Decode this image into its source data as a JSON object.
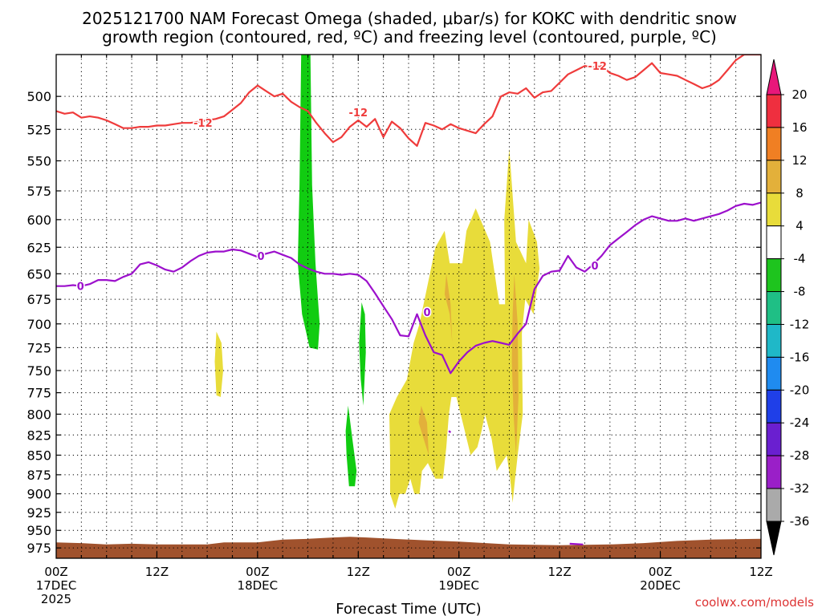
{
  "chart_data": {
    "type": "heatmap",
    "title_line1": "2025121700 NAM Forecast Omega (shaded, μbar/s) for KOKC with dendritic snow",
    "title_line2": "growth region (contoured, red, ºC) and freezing level (contoured, purple, ºC)",
    "xlabel": "Forecast Time (UTC)",
    "ylabel": "",
    "credit": "coolwx.com/models",
    "x_hours_range": [
      0,
      84
    ],
    "ylim_hpa": [
      990,
      470
    ],
    "grid": true,
    "y_ticks": [
      "500",
      "525",
      "550",
      "575",
      "600",
      "625",
      "650",
      "675",
      "700",
      "725",
      "750",
      "775",
      "800",
      "825",
      "850",
      "875",
      "900",
      "925",
      "950",
      "975"
    ],
    "y_tick_values": [
      500,
      525,
      550,
      575,
      600,
      625,
      650,
      675,
      700,
      725,
      750,
      775,
      800,
      825,
      850,
      875,
      900,
      925,
      950,
      975
    ],
    "x_ticks": [
      {
        "hour": 0,
        "l1": "00Z",
        "l2": "17DEC",
        "l3": "2025"
      },
      {
        "hour": 12,
        "l1": "12Z",
        "l2": "",
        "l3": ""
      },
      {
        "hour": 24,
        "l1": "00Z",
        "l2": "18DEC",
        "l3": ""
      },
      {
        "hour": 36,
        "l1": "12Z",
        "l2": "",
        "l3": ""
      },
      {
        "hour": 48,
        "l1": "00Z",
        "l2": "19DEC",
        "l3": ""
      },
      {
        "hour": 60,
        "l1": "12Z",
        "l2": "",
        "l3": ""
      },
      {
        "hour": 72,
        "l1": "00Z",
        "l2": "20DEC",
        "l3": ""
      },
      {
        "hour": 84,
        "l1": "12Z",
        "l2": "",
        "l3": ""
      }
    ],
    "colorbar": {
      "labels": [
        "20",
        "16",
        "12",
        "8",
        "4",
        "-4",
        "-8",
        "-12",
        "-16",
        "-20",
        "-24",
        "-28",
        "-32",
        "-36"
      ],
      "colors": [
        "#ef2f3f",
        "#f07f23",
        "#e3b03a",
        "#e8dc3a",
        "#ffffff",
        "#1ec41e",
        "#1fbf85",
        "#1fb8c8",
        "#1f8bf0",
        "#1f3fe8",
        "#6a1fd0",
        "#9a1fc8",
        "#aaaaaa"
      ],
      "top_arrow_color": "#e8177a",
      "bottom_arrow_color": "#000000"
    },
    "shading": [
      {
        "name": "upward-7",
        "color": "#11cc11",
        "points": [
          [
            29.2,
            470
          ],
          [
            30.3,
            470
          ],
          [
            30.5,
            570
          ],
          [
            30.9,
            640
          ],
          [
            31.4,
            700
          ],
          [
            31.2,
            727
          ],
          [
            30.2,
            725
          ],
          [
            29.3,
            690
          ],
          [
            28.8,
            640
          ],
          [
            29.0,
            570
          ]
        ]
      },
      {
        "name": "upward-small-1",
        "color": "#11cc11",
        "points": [
          [
            36.4,
            678
          ],
          [
            36.8,
            690
          ],
          [
            36.9,
            730
          ],
          [
            36.6,
            790
          ],
          [
            36.3,
            760
          ],
          [
            36.1,
            720
          ]
        ]
      },
      {
        "name": "upward-small-2",
        "color": "#11cc11",
        "points": [
          [
            34.8,
            790
          ],
          [
            35.3,
            830
          ],
          [
            35.8,
            870
          ],
          [
            35.6,
            890
          ],
          [
            34.9,
            890
          ],
          [
            34.6,
            850
          ],
          [
            34.5,
            820
          ]
        ]
      },
      {
        "name": "downward-small-1",
        "color": "#e8dc3a",
        "points": [
          [
            19.1,
            708
          ],
          [
            19.7,
            720
          ],
          [
            19.9,
            750
          ],
          [
            19.6,
            780
          ],
          [
            19.1,
            778
          ],
          [
            18.9,
            740
          ]
        ]
      },
      {
        "name": "downward-main",
        "color": "#e8dc3a",
        "points": [
          [
            39.7,
            800
          ],
          [
            40.6,
            780
          ],
          [
            41.8,
            760
          ],
          [
            42.6,
            720
          ],
          [
            43.3,
            700
          ],
          [
            45.2,
            625
          ],
          [
            46.3,
            610
          ],
          [
            46.9,
            640
          ],
          [
            48.4,
            640
          ],
          [
            48.9,
            610
          ],
          [
            50.0,
            590
          ],
          [
            51.7,
            620
          ],
          [
            52.8,
            680
          ],
          [
            53.5,
            680
          ],
          [
            53.4,
            600
          ],
          [
            54.0,
            540
          ],
          [
            54.8,
            620
          ],
          [
            56.0,
            640
          ],
          [
            56.3,
            600
          ],
          [
            57.3,
            620
          ],
          [
            57.6,
            645
          ],
          [
            56.9,
            690
          ],
          [
            55.9,
            675
          ],
          [
            55.5,
            710
          ],
          [
            55.6,
            800
          ],
          [
            55.0,
            850
          ],
          [
            54.7,
            880
          ],
          [
            54.4,
            912
          ],
          [
            54.1,
            880
          ],
          [
            53.7,
            850
          ],
          [
            52.5,
            870
          ],
          [
            51.9,
            830
          ],
          [
            51.1,
            800
          ],
          [
            50.7,
            820
          ],
          [
            50.2,
            840
          ],
          [
            49.4,
            850
          ],
          [
            48.7,
            820
          ],
          [
            47.7,
            780
          ],
          [
            47.1,
            780
          ],
          [
            46.8,
            800
          ],
          [
            46.5,
            840
          ],
          [
            46.1,
            880
          ],
          [
            45.2,
            880
          ],
          [
            44.3,
            860
          ],
          [
            43.6,
            870
          ],
          [
            43.3,
            900
          ],
          [
            42.7,
            900
          ],
          [
            42.2,
            880
          ],
          [
            41.6,
            900
          ],
          [
            40.9,
            900
          ],
          [
            40.4,
            920
          ],
          [
            39.8,
            900
          ],
          [
            39.8,
            850
          ]
        ]
      },
      {
        "name": "downward-8-a",
        "color": "#e3b03a",
        "points": [
          [
            46.5,
            650
          ],
          [
            47.0,
            680
          ],
          [
            47.2,
            720
          ],
          [
            46.9,
            690
          ],
          [
            46.3,
            670
          ]
        ]
      },
      {
        "name": "downward-8-b",
        "color": "#e3b03a",
        "points": [
          [
            43.5,
            790
          ],
          [
            44.2,
            810
          ],
          [
            44.4,
            850
          ],
          [
            43.8,
            830
          ],
          [
            43.2,
            810
          ]
        ]
      },
      {
        "name": "downward-8-c",
        "color": "#e3b03a",
        "points": [
          [
            54.6,
            650
          ],
          [
            55.0,
            700
          ],
          [
            55.1,
            780
          ],
          [
            54.8,
            850
          ],
          [
            54.5,
            800
          ],
          [
            54.3,
            740
          ],
          [
            54.4,
            690
          ]
        ]
      },
      {
        "name": "surface-terrain",
        "color": "#a0522d",
        "points": [
          [
            0,
            967
          ],
          [
            3,
            968
          ],
          [
            6,
            970
          ],
          [
            9,
            969
          ],
          [
            12,
            970
          ],
          [
            18,
            970
          ],
          [
            20,
            967
          ],
          [
            24,
            967
          ],
          [
            27,
            963
          ],
          [
            30,
            962
          ],
          [
            33,
            960
          ],
          [
            35,
            959
          ],
          [
            37,
            960
          ],
          [
            40,
            962
          ],
          [
            44,
            964
          ],
          [
            48,
            966
          ],
          [
            54,
            970
          ],
          [
            60,
            971
          ],
          [
            66,
            970
          ],
          [
            70,
            968
          ],
          [
            74,
            965
          ],
          [
            78,
            963
          ],
          [
            84,
            962
          ],
          [
            84,
            990
          ],
          [
            0,
            990
          ]
        ]
      }
    ],
    "contours": [
      {
        "name": "dendritic -12",
        "value": -12,
        "color": "#ef3b3b",
        "x": [
          0,
          1,
          2,
          3,
          4,
          5,
          6,
          7,
          8,
          9,
          10,
          11,
          12,
          13,
          14,
          15,
          16,
          17,
          18,
          19,
          20,
          21,
          22,
          23,
          24,
          25,
          26,
          27,
          28,
          29,
          30,
          31,
          32,
          33,
          34,
          35,
          36,
          37,
          38,
          39,
          40,
          41,
          42,
          43,
          44,
          45,
          46,
          47,
          48,
          49,
          50,
          51,
          52,
          53,
          54,
          55,
          56,
          57,
          58,
          59,
          60,
          61,
          62,
          63,
          64,
          65,
          66,
          67,
          68,
          69,
          70,
          71,
          72,
          73,
          74,
          75,
          76,
          77,
          78,
          79,
          80,
          81,
          82,
          83,
          84
        ],
        "y": [
          511,
          513,
          512,
          516,
          515,
          516,
          518,
          521,
          524,
          524,
          523,
          523,
          522,
          522,
          521,
          520,
          520,
          519,
          518,
          517,
          515,
          510,
          505,
          497,
          492,
          496,
          500,
          498,
          504,
          508,
          511,
          520,
          528,
          535,
          531,
          523,
          518,
          523,
          517,
          531,
          519,
          524,
          532,
          538,
          520,
          522,
          525,
          521,
          524,
          526,
          528,
          521,
          515,
          500,
          497,
          498,
          494,
          501,
          497,
          496,
          490,
          484,
          481,
          478,
          479,
          478,
          483,
          485,
          488,
          486,
          481,
          476,
          483,
          484,
          485,
          488,
          491,
          494,
          492,
          488,
          481,
          474,
          470,
          470,
          470
        ]
      },
      {
        "name": "freezing 0",
        "value": 0,
        "color": "#9c10cc",
        "x": [
          0,
          1,
          2,
          3,
          4,
          5,
          6,
          7,
          8,
          9,
          10,
          11,
          12,
          13,
          14,
          15,
          16,
          17,
          18,
          19,
          20,
          21,
          22,
          23,
          24,
          25,
          26,
          27,
          28,
          29,
          30,
          31,
          32,
          33,
          34,
          35,
          36,
          37,
          38,
          39,
          40,
          41,
          42,
          43,
          44,
          45,
          46,
          47,
          48,
          49,
          50,
          51,
          52,
          53,
          54,
          55,
          56,
          57,
          58,
          59,
          60,
          61,
          62,
          63,
          64,
          65,
          66,
          67,
          68,
          69,
          70,
          71,
          72,
          73,
          74,
          75,
          76,
          77,
          78,
          79,
          80,
          81,
          82,
          83,
          84
        ],
        "y": [
          662,
          662,
          661,
          662,
          660,
          656,
          656,
          657,
          653,
          650,
          641,
          639,
          642,
          646,
          648,
          644,
          638,
          633,
          630,
          629,
          629,
          627,
          628,
          631,
          634,
          631,
          629,
          632,
          635,
          641,
          645,
          648,
          650,
          650,
          651,
          650,
          651,
          657,
          669,
          682,
          695,
          712,
          713,
          690,
          712,
          730,
          733,
          753,
          740,
          730,
          723,
          720,
          718,
          720,
          722,
          710,
          700,
          665,
          652,
          648,
          647,
          633,
          644,
          648,
          641,
          633,
          623,
          617,
          611,
          605,
          600,
          597,
          599,
          601,
          601,
          599,
          601,
          599,
          597,
          595,
          592,
          588,
          586,
          587,
          585
        ]
      },
      {
        "name": "spot 0",
        "value": 0,
        "color": "#9c10cc",
        "x": [
          46.8,
          47.0
        ],
        "y": [
          820,
          822
        ]
      },
      {
        "name": "sfc spot",
        "value": 0,
        "color": "#9c10cc",
        "x": [
          61.2,
          62.8
        ],
        "y": [
          969,
          970
        ]
      }
    ],
    "contour_labels": [
      {
        "text": "-12",
        "hour": 17.5,
        "pres": 520,
        "color": "#ef3b3b"
      },
      {
        "text": "-12",
        "hour": 36.0,
        "pres": 512,
        "color": "#ef3b3b"
      },
      {
        "text": "-12",
        "hour": 64.5,
        "pres": 478,
        "color": "#ef3b3b"
      },
      {
        "text": "0",
        "hour": 2.9,
        "pres": 662,
        "color": "#9c10cc"
      },
      {
        "text": "0",
        "hour": 24.4,
        "pres": 633,
        "color": "#9c10cc"
      },
      {
        "text": "0",
        "hour": 44.2,
        "pres": 688,
        "color": "#9c10cc"
      },
      {
        "text": "0",
        "hour": 64.2,
        "pres": 642,
        "color": "#9c10cc"
      }
    ]
  }
}
